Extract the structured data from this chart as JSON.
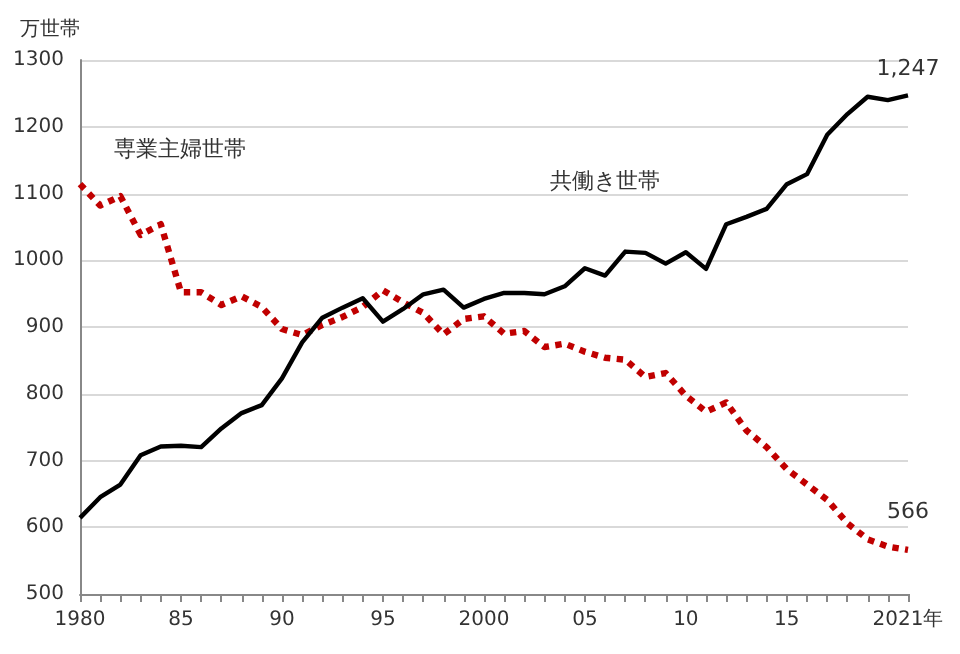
{
  "chart_data": {
    "type": "line",
    "ylabel": "万世帯",
    "x": [
      1980,
      1981,
      1982,
      1983,
      1984,
      1985,
      1986,
      1987,
      1988,
      1989,
      1990,
      1991,
      1992,
      1993,
      1994,
      1995,
      1996,
      1997,
      1998,
      1999,
      2000,
      2001,
      2002,
      2003,
      2004,
      2005,
      2006,
      2007,
      2008,
      2009,
      2010,
      2011,
      2012,
      2013,
      2014,
      2015,
      2016,
      2017,
      2018,
      2019,
      2020,
      2021
    ],
    "series": [
      {
        "name": "専業主婦世帯",
        "color": "#c00000",
        "line_style": "dotted",
        "values": [
          1114,
          1082,
          1096,
          1038,
          1054,
          952,
          952,
          933,
          946,
          930,
          897,
          888,
          903,
          915,
          930,
          955,
          937,
          921,
          889,
          912,
          916,
          890,
          894,
          870,
          875,
          863,
          854,
          851,
          825,
          831,
          797,
          773,
          787,
          745,
          720,
          687,
          664,
          641,
          606,
          582,
          571,
          566
        ]
      },
      {
        "name": "共働き世帯",
        "color": "#000000",
        "line_style": "solid",
        "values": [
          614,
          645,
          664,
          708,
          721,
          722,
          720,
          748,
          771,
          783,
          823,
          877,
          914,
          929,
          943,
          908,
          927,
          949,
          956,
          929,
          942,
          951,
          951,
          949,
          961,
          988,
          977,
          1013,
          1011,
          995,
          1012,
          987,
          1054,
          1065,
          1077,
          1114,
          1129,
          1188,
          1219,
          1245,
          1240,
          1247
        ]
      }
    ],
    "xlim": [
      1980,
      2021
    ],
    "xticks": [
      {
        "value": 1980,
        "label": "1980"
      },
      {
        "value": 1981,
        "label": null
      },
      {
        "value": 1982,
        "label": null
      },
      {
        "value": 1983,
        "label": null
      },
      {
        "value": 1984,
        "label": null
      },
      {
        "value": 1985,
        "label": "85"
      },
      {
        "value": 1986,
        "label": null
      },
      {
        "value": 1987,
        "label": null
      },
      {
        "value": 1988,
        "label": null
      },
      {
        "value": 1989,
        "label": null
      },
      {
        "value": 1990,
        "label": "90"
      },
      {
        "value": 1991,
        "label": null
      },
      {
        "value": 1992,
        "label": null
      },
      {
        "value": 1993,
        "label": null
      },
      {
        "value": 1994,
        "label": null
      },
      {
        "value": 1995,
        "label": "95"
      },
      {
        "value": 1996,
        "label": null
      },
      {
        "value": 1997,
        "label": null
      },
      {
        "value": 1998,
        "label": null
      },
      {
        "value": 1999,
        "label": null
      },
      {
        "value": 2000,
        "label": "2000"
      },
      {
        "value": 2001,
        "label": null
      },
      {
        "value": 2002,
        "label": null
      },
      {
        "value": 2003,
        "label": null
      },
      {
        "value": 2004,
        "label": null
      },
      {
        "value": 2005,
        "label": "05"
      },
      {
        "value": 2006,
        "label": null
      },
      {
        "value": 2007,
        "label": null
      },
      {
        "value": 2008,
        "label": null
      },
      {
        "value": 2009,
        "label": null
      },
      {
        "value": 2010,
        "label": "10"
      },
      {
        "value": 2011,
        "label": null
      },
      {
        "value": 2012,
        "label": null
      },
      {
        "value": 2013,
        "label": null
      },
      {
        "value": 2014,
        "label": null
      },
      {
        "value": 2015,
        "label": "15"
      },
      {
        "value": 2016,
        "label": null
      },
      {
        "value": 2017,
        "label": null
      },
      {
        "value": 2018,
        "label": null
      },
      {
        "value": 2019,
        "label": null
      },
      {
        "value": 2020,
        "label": null
      },
      {
        "value": 2021,
        "label": "2021年"
      }
    ],
    "ylim": [
      500,
      1300
    ],
    "yticks": [
      500,
      600,
      700,
      800,
      900,
      1000,
      1100,
      1200,
      1300
    ],
    "grid": "y",
    "legend": false,
    "marker": "none",
    "annotations": [
      {
        "text": "1,247",
        "x": 2021,
        "y": 1247
      },
      {
        "text": "566",
        "x": 2021,
        "y": 566
      }
    ]
  }
}
